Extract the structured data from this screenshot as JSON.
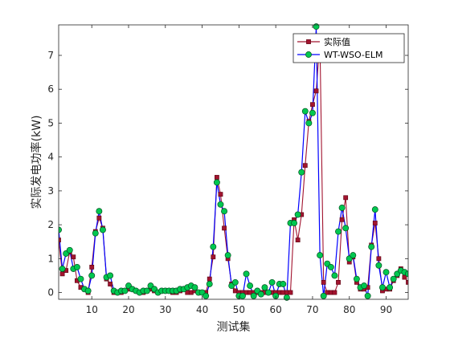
{
  "chart_data": {
    "type": "line",
    "xlabel": "测试集",
    "ylabel": "实际发电功率(kW)",
    "xlim": [
      1,
      96
    ],
    "ylim": [
      -0.2,
      7.9
    ],
    "xticks": [
      10,
      20,
      30,
      40,
      50,
      60,
      70,
      80,
      90
    ],
    "yticks": [
      0,
      1,
      2,
      3,
      4,
      5,
      6,
      7
    ],
    "grid": false,
    "legend_position": "top-right",
    "series": [
      {
        "name": "实际值",
        "color": "#a2142f",
        "marker": "square",
        "values": [
          1.55,
          0.55,
          0.65,
          1.2,
          1.05,
          0.35,
          0.15,
          0.1,
          0.0,
          0.75,
          1.8,
          2.2,
          1.9,
          0.4,
          0.25,
          0.0,
          0.0,
          0.0,
          0.05,
          0.1,
          0.1,
          0.05,
          0.0,
          0.0,
          0.05,
          0.1,
          0.05,
          0.0,
          0.05,
          0.05,
          0.05,
          0.0,
          0.0,
          0.05,
          0.1,
          0.0,
          0.0,
          0.05,
          0.0,
          0.0,
          0.0,
          0.4,
          1.05,
          3.4,
          2.9,
          1.9,
          1.0,
          0.25,
          0.05,
          0.0,
          0.0,
          0.0,
          0.0,
          0.0,
          0.0,
          0.0,
          0.0,
          0.0,
          0.0,
          0.0,
          0.0,
          0.0,
          0.0,
          0.0,
          2.15,
          1.55,
          2.3,
          3.75,
          5.05,
          5.55,
          5.95,
          7.45,
          0.3,
          0.0,
          0.0,
          0.0,
          0.3,
          2.15,
          2.8,
          0.9,
          1.05,
          0.3,
          0.1,
          0.1,
          0.15,
          1.4,
          2.05,
          1.0,
          0.05,
          0.1,
          0.1,
          0.35,
          0.5,
          0.7,
          0.45,
          0.3
        ]
      },
      {
        "name": "WT-WSO-ELM",
        "color": "#0000ff",
        "marker_color": "#00c850",
        "marker": "circle",
        "values": [
          1.85,
          0.7,
          1.15,
          1.25,
          0.7,
          0.75,
          0.4,
          0.1,
          0.05,
          0.5,
          1.75,
          2.4,
          1.85,
          0.45,
          0.5,
          0.05,
          0.0,
          0.05,
          0.05,
          0.2,
          0.1,
          0.05,
          0.0,
          0.05,
          0.05,
          0.2,
          0.1,
          0.0,
          0.05,
          0.05,
          0.05,
          0.05,
          0.05,
          0.1,
          0.1,
          0.15,
          0.2,
          0.15,
          0.0,
          0.0,
          -0.1,
          0.25,
          1.35,
          3.25,
          2.6,
          2.4,
          1.1,
          0.2,
          0.3,
          -0.1,
          -0.1,
          0.55,
          0.2,
          -0.1,
          0.05,
          -0.05,
          0.15,
          0.0,
          0.3,
          -0.1,
          0.25,
          0.25,
          -0.15,
          2.05,
          2.05,
          2.3,
          3.55,
          5.35,
          5.0,
          5.3,
          7.85,
          1.1,
          -0.1,
          0.85,
          0.75,
          0.5,
          1.8,
          2.5,
          1.9,
          1.0,
          1.1,
          0.4,
          0.15,
          0.2,
          -0.1,
          1.35,
          2.45,
          0.8,
          0.15,
          0.6,
          0.15,
          0.4,
          0.55,
          0.65,
          0.6,
          0.55
        ]
      }
    ]
  }
}
